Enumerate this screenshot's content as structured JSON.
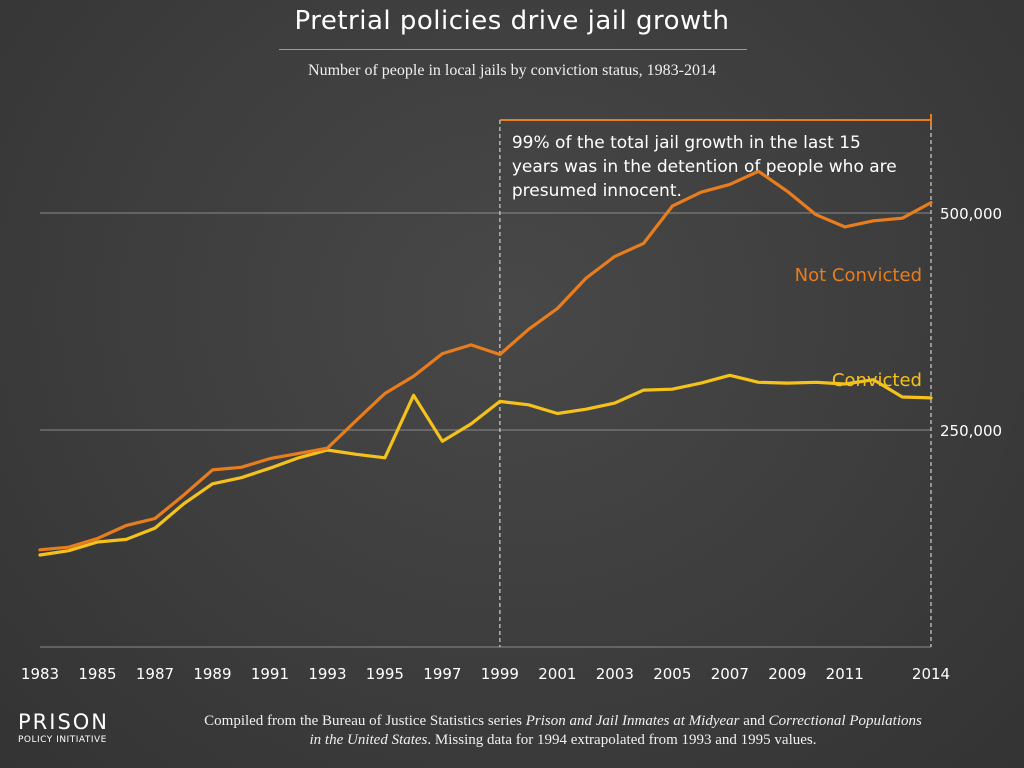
{
  "title": "Pretrial policies drive jail growth",
  "subtitle": "Number of people in local jails by conviction status, 1983-2014",
  "annotation": {
    "text_lines": [
      "99% of the total jail growth in the last 15",
      "years was in the detention of people who are",
      "presumed innocent."
    ],
    "start_year": 1999,
    "end_year": 2014
  },
  "logo": {
    "main": "PRISON",
    "sub": "POLICY INITIATIVE"
  },
  "source": {
    "prefix": "Compiled from the Bureau of Justice Statistics series ",
    "italic1": "Prison and Jail Inmates at Midyear",
    "mid": " and ",
    "italic2": "Correctional Populations",
    "italic3": "in the United States",
    "suffix": ". Missing data for 1994 extrapolated from 1993 and 1995 values."
  },
  "colors": {
    "not_convicted": "#e87d1e",
    "convicted": "#f5c21b",
    "gridline": "#8a8a8a",
    "annotation_line": "#d0d0d0"
  },
  "chart_data": {
    "type": "line",
    "title": "Pretrial policies drive jail growth",
    "subtitle": "Number of people in local jails by conviction status, 1983-2014",
    "x": [
      1983,
      1984,
      1985,
      1986,
      1987,
      1988,
      1989,
      1990,
      1991,
      1992,
      1993,
      1994,
      1995,
      1996,
      1997,
      1998,
      1999,
      2000,
      2001,
      2002,
      2003,
      2004,
      2005,
      2006,
      2007,
      2008,
      2009,
      2010,
      2011,
      2012,
      2013,
      2014
    ],
    "xlim": [
      1983,
      2014
    ],
    "ylim": [
      0,
      600000
    ],
    "x_tick_labels": [
      "1983",
      "1985",
      "1987",
      "1989",
      "1991",
      "1993",
      "1995",
      "1997",
      "1999",
      "2001",
      "2003",
      "2005",
      "2007",
      "2009",
      "2011",
      "2014"
    ],
    "y_ticks": [
      250000,
      500000
    ],
    "y_tick_labels": [
      "250,000",
      "500,000"
    ],
    "grid": "horizontal",
    "series": [
      {
        "name": "Not Convicted",
        "color": "#e87d1e",
        "values": [
          112000,
          115000,
          125000,
          140000,
          148000,
          175000,
          204000,
          207000,
          217000,
          223000,
          229000,
          261000,
          292000,
          312000,
          338000,
          348000,
          337000,
          366000,
          390000,
          425000,
          450000,
          465000,
          508000,
          524000,
          533000,
          548000,
          525000,
          498000,
          484000,
          491000,
          494000,
          512000
        ]
      },
      {
        "name": "Convicted",
        "color": "#f5c21b",
        "values": [
          106000,
          111000,
          121000,
          124000,
          137000,
          165000,
          188000,
          195000,
          206000,
          218000,
          227000,
          222000,
          218000,
          290000,
          237000,
          257000,
          283000,
          279000,
          269000,
          274000,
          281000,
          296000,
          297000,
          304000,
          313000,
          305000,
          304000,
          305000,
          303000,
          308000,
          288000,
          287000
        ]
      }
    ]
  }
}
